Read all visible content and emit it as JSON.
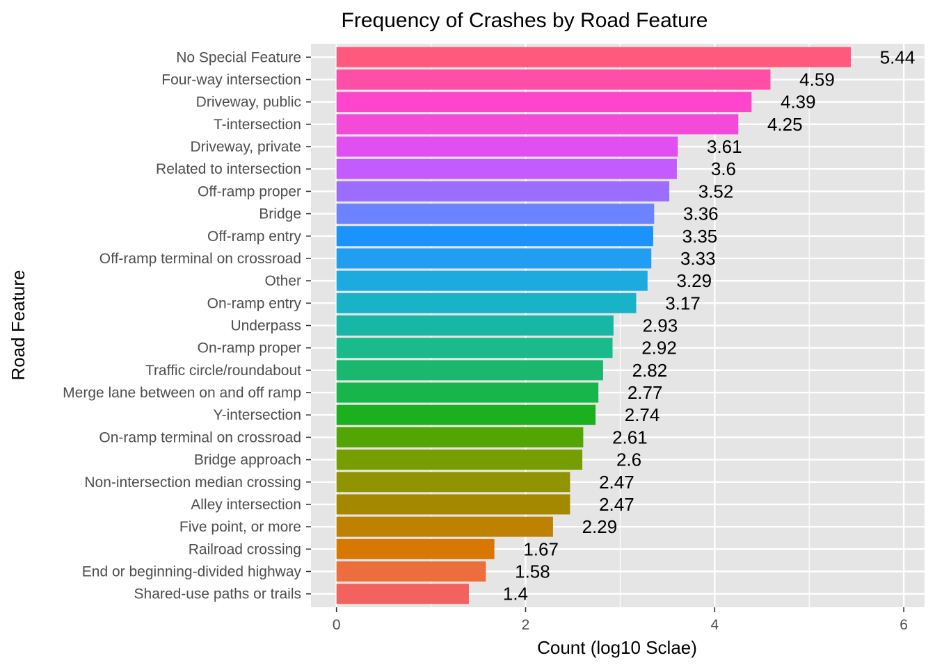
{
  "chart_data": {
    "type": "bar",
    "orientation": "horizontal",
    "title": "Frequency of Crashes by Road Feature",
    "xlabel": "Count (log10 Sclae)",
    "ylabel": "Road Feature",
    "xlim": [
      -0.27,
      6.22
    ],
    "xticks": [
      0,
      2,
      4,
      6
    ],
    "grid": true,
    "legend": "none",
    "categories": [
      "No Special Feature",
      "Four-way intersection",
      "Driveway, public",
      "T-intersection",
      "Driveway, private",
      "Related to intersection",
      "Off-ramp proper",
      "Bridge",
      "Off-ramp entry",
      "Off-ramp terminal on crossroad",
      "Other",
      "On-ramp entry",
      "Underpass",
      "On-ramp proper",
      "Traffic circle/roundabout",
      "Merge lane between on and off ramp",
      "Y-intersection",
      "On-ramp terminal on crossroad",
      "Bridge approach",
      "Non-intersection median crossing",
      "Alley intersection",
      "Five point, or more",
      "Railroad crossing",
      "End or beginning-divided highway",
      "Shared-use paths or trails"
    ],
    "values": [
      5.44,
      4.59,
      4.39,
      4.25,
      3.61,
      3.6,
      3.52,
      3.36,
      3.35,
      3.33,
      3.29,
      3.17,
      2.93,
      2.92,
      2.82,
      2.77,
      2.74,
      2.61,
      2.6,
      2.47,
      2.47,
      2.29,
      1.67,
      1.58,
      1.4
    ],
    "labels": [
      "5.44",
      "4.59",
      "4.39",
      "4.25",
      "3.61",
      "3.6",
      "3.52",
      "3.36",
      "3.35",
      "3.33",
      "3.29",
      "3.17",
      "2.93",
      "2.92",
      "2.82",
      "2.77",
      "2.74",
      "2.61",
      "2.6",
      "2.47",
      "2.47",
      "2.29",
      "1.67",
      "1.58",
      "1.4"
    ],
    "colors": [
      "#FF5A7E",
      "#FF4DA8",
      "#FF45CC",
      "#F44AD8",
      "#E14EF1",
      "#C35CFF",
      "#9B6EFF",
      "#6C83FF",
      "#1A93FF",
      "#219EF2",
      "#1DABDF",
      "#19B3C7",
      "#17B6A7",
      "#19BA8C",
      "#1BB76E",
      "#18B54B",
      "#1AB01E",
      "#52A502",
      "#779E00",
      "#8F9400",
      "#A48900",
      "#BE8200",
      "#D97800",
      "#EB6E3C",
      "#F2635F"
    ]
  }
}
